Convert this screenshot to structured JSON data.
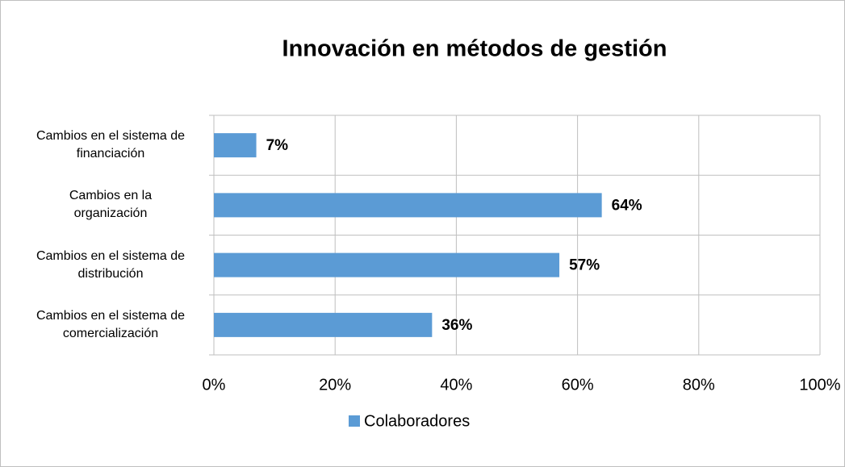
{
  "chart_data": {
    "type": "hbar",
    "title": "Innovación en métodos de gestión",
    "categories": [
      "Cambios en el sistema de\nfinanciación",
      "Cambios en la\norganización",
      "Cambios en el sistema de\ndistribución",
      "Cambios en el sistema de\ncomercialización"
    ],
    "series": [
      {
        "name": "Colaboradores",
        "color": "#5b9bd5",
        "values": [
          7,
          64,
          57,
          36
        ],
        "value_labels": [
          "7%",
          "64%",
          "57%",
          "36%"
        ]
      }
    ],
    "xlim": [
      0,
      100
    ],
    "xticks": [
      {
        "value": 0,
        "label": "0%"
      },
      {
        "value": 20,
        "label": "20%"
      },
      {
        "value": 40,
        "label": "40%"
      },
      {
        "value": 60,
        "label": "60%"
      },
      {
        "value": 80,
        "label": "80%"
      },
      {
        "value": 100,
        "label": "100%"
      }
    ],
    "grid": true,
    "legend": "bottom"
  }
}
